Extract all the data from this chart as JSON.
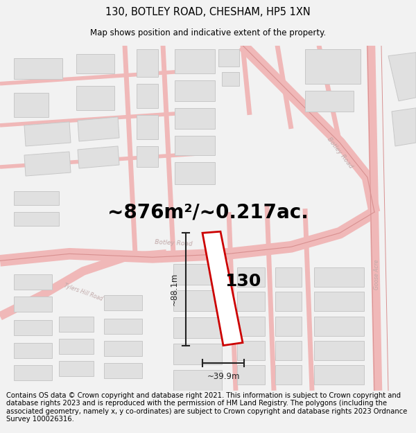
{
  "title": "130, BOTLEY ROAD, CHESHAM, HP5 1XN",
  "subtitle": "Map shows position and indicative extent of the property.",
  "area_text": "~876m²/~0.217ac.",
  "label": "130",
  "dim_height": "~88.1m",
  "dim_width": "~39.9m",
  "footer": "Contains OS data © Crown copyright and database right 2021. This information is subject to Crown copyright and database rights 2023 and is reproduced with the permission of HM Land Registry. The polygons (including the associated geometry, namely x, y co-ordinates) are subject to Crown copyright and database rights 2023 Ordnance Survey 100026316.",
  "bg_color": "#f2f2f2",
  "map_bg": "#ffffff",
  "road_color": "#f0b8b8",
  "road_edge_color": "#d89090",
  "building_fill": "#e0e0e0",
  "building_edge": "#c8c8c8",
  "property_color": "#cc0000",
  "property_fill": "#ffffff",
  "dim_color": "#222222",
  "road_label_color": "#c0a8a8",
  "title_fontsize": 10.5,
  "subtitle_fontsize": 8.5,
  "area_fontsize": 20,
  "label_fontsize": 18,
  "footer_fontsize": 7.2,
  "road_lw": 6.5,
  "road_edge_lw": 0.8
}
